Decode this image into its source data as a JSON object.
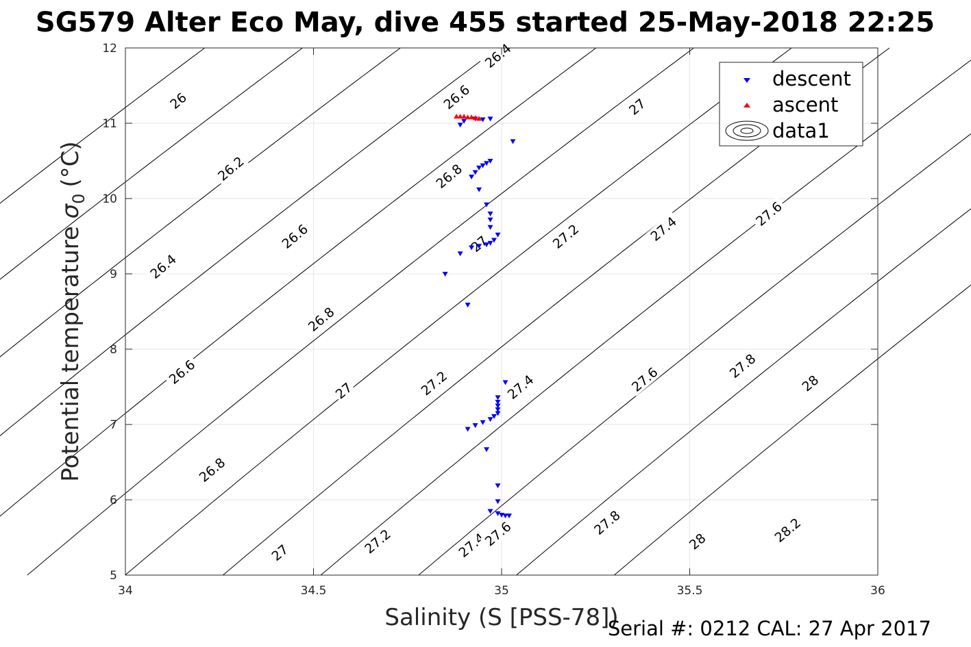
{
  "title": "SG579 Alter Eco May, dive 455 started 25-May-2018 22:25",
  "footer": "Serial #: 0212  CAL: 27 Apr 2017",
  "chart_data": {
    "type": "scatter",
    "title": "SG579 Alter Eco May, dive 455 started 25-May-2018 22:25",
    "xlabel": "Salinity (S [PSS-78])",
    "ylabel": "Potential temperature",
    "ylabel_sym": "σ",
    "ylabel_sub": "0",
    "ylabel_unit": "(°C)",
    "xlim": [
      34,
      36
    ],
    "ylim": [
      5,
      12
    ],
    "xticks": [
      "34",
      "34.5",
      "35",
      "35.5",
      "36"
    ],
    "yticks": [
      "5",
      "6",
      "7",
      "8",
      "9",
      "10",
      "11",
      "12"
    ],
    "grid": true,
    "legend_position": "top-right",
    "legend": [
      "descent",
      "ascent",
      "data1"
    ],
    "colors": {
      "descent": "#0000ff",
      "ascent": "#ff0000",
      "contour": "#000000",
      "grid": "#e6e6e6"
    },
    "series": [
      {
        "name": "descent",
        "marker": "triangle-down",
        "color": "#0000ff",
        "points": [
          [
            34.89,
            10.98
          ],
          [
            34.9,
            11.03
          ],
          [
            34.93,
            11.06
          ],
          [
            34.95,
            11.05
          ],
          [
            34.97,
            11.06
          ],
          [
            35.03,
            10.76
          ],
          [
            34.97,
            10.5
          ],
          [
            34.96,
            10.47
          ],
          [
            34.95,
            10.44
          ],
          [
            34.94,
            10.41
          ],
          [
            34.93,
            10.35
          ],
          [
            34.92,
            10.29
          ],
          [
            34.94,
            10.12
          ],
          [
            34.96,
            9.92
          ],
          [
            34.97,
            9.8
          ],
          [
            34.97,
            9.72
          ],
          [
            34.97,
            9.62
          ],
          [
            34.99,
            9.52
          ],
          [
            34.98,
            9.45
          ],
          [
            34.97,
            9.41
          ],
          [
            34.96,
            9.39
          ],
          [
            34.94,
            9.37
          ],
          [
            34.92,
            9.35
          ],
          [
            34.89,
            9.27
          ],
          [
            34.85,
            9.0
          ],
          [
            34.91,
            8.59
          ],
          [
            35.01,
            7.56
          ],
          [
            34.99,
            7.36
          ],
          [
            34.99,
            7.3
          ],
          [
            34.99,
            7.25
          ],
          [
            34.99,
            7.2
          ],
          [
            34.99,
            7.15
          ],
          [
            34.98,
            7.11
          ],
          [
            34.97,
            7.07
          ],
          [
            34.95,
            7.03
          ],
          [
            34.93,
            6.99
          ],
          [
            34.91,
            6.94
          ],
          [
            34.96,
            6.67
          ],
          [
            34.99,
            6.19
          ],
          [
            34.99,
            5.98
          ],
          [
            34.97,
            5.85
          ],
          [
            34.99,
            5.82
          ],
          [
            35.0,
            5.8
          ],
          [
            35.01,
            5.79
          ],
          [
            35.02,
            5.79
          ]
        ]
      },
      {
        "name": "ascent",
        "marker": "triangle-up",
        "color": "#ff0000",
        "points": [
          [
            34.88,
            11.09
          ],
          [
            34.89,
            11.09
          ],
          [
            34.9,
            11.09
          ],
          [
            34.91,
            11.08
          ],
          [
            34.92,
            11.08
          ],
          [
            34.93,
            11.07
          ],
          [
            34.94,
            11.06
          ]
        ]
      },
      {
        "name": "data1",
        "kind": "sigma0-isopycnals",
        "levels": [
          26,
          26.2,
          26.4,
          26.6,
          26.8,
          27,
          27.2,
          27.4,
          27.6,
          27.8,
          28,
          28.2
        ],
        "labels": [
          {
            "text": "26",
            "s": 34.14,
            "t": 11.3
          },
          {
            "text": "26.2",
            "s": 34.28,
            "t": 10.4
          },
          {
            "text": "26.4",
            "s": 34.1,
            "t": 9.1
          },
          {
            "text": "26.6",
            "s": 34.15,
            "t": 7.7
          },
          {
            "text": "26.8",
            "s": 34.23,
            "t": 6.4
          },
          {
            "text": "27",
            "s": 34.41,
            "t": 5.3
          },
          {
            "text": "26.4",
            "s": 34.99,
            "t": 11.9
          },
          {
            "text": "26.6",
            "s": 34.88,
            "t": 11.35
          },
          {
            "text": "26.8",
            "s": 34.86,
            "t": 10.3
          },
          {
            "text": "27",
            "s": 34.94,
            "t": 9.4
          },
          {
            "text": "26.6",
            "s": 34.45,
            "t": 9.5
          },
          {
            "text": "26.8",
            "s": 34.52,
            "t": 8.4
          },
          {
            "text": "27",
            "s": 34.58,
            "t": 7.45
          },
          {
            "text": "27.2",
            "s": 34.67,
            "t": 5.45
          },
          {
            "text": "27.2",
            "s": 34.82,
            "t": 7.55
          },
          {
            "text": "27.4",
            "s": 34.92,
            "t": 5.4
          },
          {
            "text": "27.6",
            "s": 34.99,
            "t": 5.55
          },
          {
            "text": "27.4",
            "s": 35.05,
            "t": 7.5
          },
          {
            "text": "27.2",
            "s": 35.17,
            "t": 9.5
          },
          {
            "text": "27",
            "s": 35.36,
            "t": 11.22
          },
          {
            "text": "27.4",
            "s": 35.43,
            "t": 9.6
          },
          {
            "text": "27.6",
            "s": 35.38,
            "t": 7.6
          },
          {
            "text": "27.8",
            "s": 35.28,
            "t": 5.7
          },
          {
            "text": "27.6",
            "s": 35.71,
            "t": 9.8
          },
          {
            "text": "27.8",
            "s": 35.64,
            "t": 7.78
          },
          {
            "text": "28",
            "s": 35.52,
            "t": 5.45
          },
          {
            "text": "28",
            "s": 35.82,
            "t": 7.55
          },
          {
            "text": "28.2",
            "s": 35.76,
            "t": 5.6
          }
        ]
      }
    ]
  }
}
